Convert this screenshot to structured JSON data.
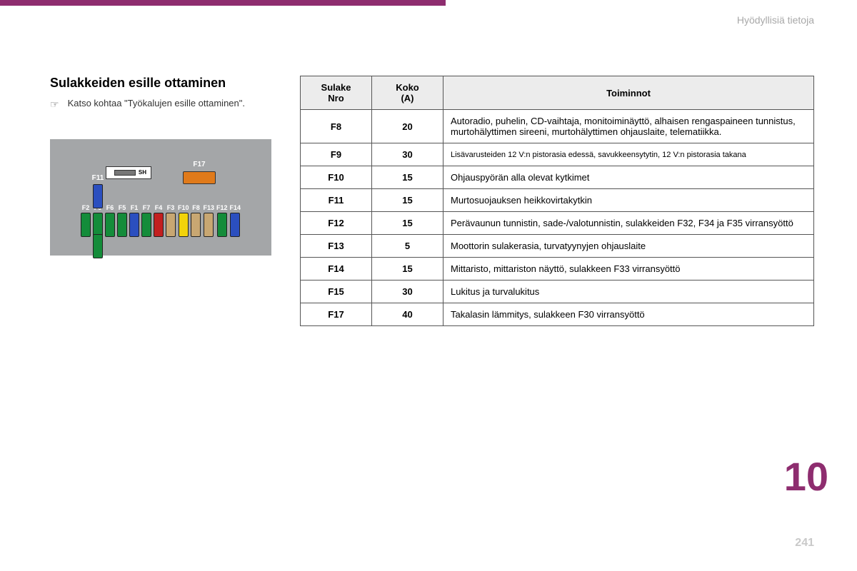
{
  "colors": {
    "accent": "#8e2d6f",
    "diagram_bg": "#a4a6a8",
    "header_gray": "#a8a8a8",
    "table_header_bg": "#ececec",
    "border": "#555555"
  },
  "header": {
    "right_text": "Hyödyllisiä tietoja"
  },
  "section": {
    "title": "Sulakkeiden esille ottaminen",
    "hint_icon": "☞",
    "hint_text": "Katso kohtaa \"Työkalujen esille ottaminen\"."
  },
  "diagram": {
    "sh_text": "SH",
    "f17_label": "F17",
    "f11_label": "F11",
    "f15_label": "F15",
    "fuse_colors": {
      "green": "#148c3a",
      "blue": "#2b4fbf",
      "red": "#c21f1f",
      "tan": "#c8a772",
      "yellow": "#f2d30a",
      "orange": "#e07a1a"
    },
    "fuses_main": [
      {
        "label": "F2",
        "color": "green"
      },
      {
        "label": "F9",
        "color": "green"
      },
      {
        "label": "F6",
        "color": "green"
      },
      {
        "label": "F5",
        "color": "green"
      },
      {
        "label": "F1",
        "color": "blue"
      },
      {
        "label": "F7",
        "color": "green"
      },
      {
        "label": "F4",
        "color": "red"
      },
      {
        "label": "F3",
        "color": "tan"
      },
      {
        "label": "F10",
        "color": "yellow"
      },
      {
        "label": "F8",
        "color": "tan"
      },
      {
        "label": "F13",
        "color": "tan"
      },
      {
        "label": "F12",
        "color": "green"
      },
      {
        "label": "F14",
        "color": "blue"
      }
    ]
  },
  "table": {
    "headers": {
      "c1": "Sulake\nNro",
      "c2": "Koko\n(A)",
      "c3": "Toiminnot"
    },
    "rows": [
      {
        "nro": "F8",
        "koko": "20",
        "fn": "Autoradio, puhelin, CD-vaihtaja, monitoiminäyttö, alhaisen rengaspaineen tunnistus, murtohälyttimen sireeni, murtohälyttimen ohjauslaite, telematiikka.",
        "small": false
      },
      {
        "nro": "F9",
        "koko": "30",
        "fn": "Lisävarusteiden 12 V:n pistorasia edessä, savukkeensytytin, 12 V:n pistorasia takana",
        "small": true
      },
      {
        "nro": "F10",
        "koko": "15",
        "fn": "Ohjauspyörän alla olevat kytkimet",
        "small": false
      },
      {
        "nro": "F11",
        "koko": "15",
        "fn": "Murtosuojauksen heikkovirtakytkin",
        "small": false
      },
      {
        "nro": "F12",
        "koko": "15",
        "fn": "Perävaunun tunnistin, sade-/valotunnistin, sulakkeiden F32, F34 ja F35 virransyöttö",
        "small": false
      },
      {
        "nro": "F13",
        "koko": "5",
        "fn": "Moottorin sulakerasia, turvatyynyjen ohjauslaite",
        "small": false
      },
      {
        "nro": "F14",
        "koko": "15",
        "fn": "Mittaristo, mittariston näyttö, sulakkeen F33 virransyöttö",
        "small": false
      },
      {
        "nro": "F15",
        "koko": "30",
        "fn": "Lukitus ja turvalukitus",
        "small": false
      },
      {
        "nro": "F17",
        "koko": "40",
        "fn": "Takalasin lämmitys, sulakkeen F30 virransyöttö",
        "small": false
      }
    ]
  },
  "chapter_number": "10",
  "page_number": "241"
}
